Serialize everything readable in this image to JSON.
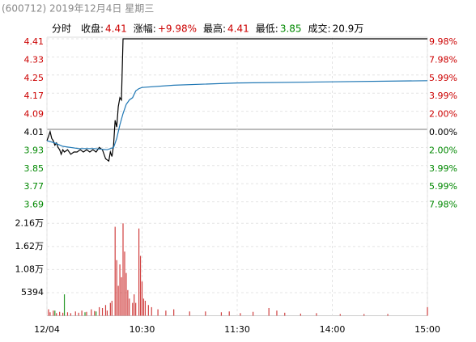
{
  "header": {
    "title": "(600712) 2019年12月4日 星期三",
    "tab": "分时",
    "info": [
      {
        "label": "收盘:",
        "value": "4.41"
      },
      {
        "label": "涨幅:",
        "value": "+9.98%"
      },
      {
        "label": "最高:",
        "value": "4.41"
      },
      {
        "label": "最低:",
        "value": "3.85"
      },
      {
        "label": "成交:",
        "value": "20.9万"
      }
    ]
  },
  "chart_data": [
    {
      "type": "line",
      "up_color": "#cc0000",
      "down_color": "#008800",
      "xlim": [
        0,
        240
      ],
      "xticks": [
        {
          "value": 0,
          "label": "12/04"
        },
        {
          "value": 60,
          "label": "10:30"
        },
        {
          "value": 120,
          "label": "11:30"
        },
        {
          "value": 180,
          "label": "14:00"
        },
        {
          "value": 240,
          "label": "15:00"
        }
      ],
      "ylim": [
        3.66,
        4.41
      ],
      "yticks": [
        4.41,
        4.33,
        4.25,
        4.17,
        4.09,
        4.01,
        3.93,
        3.85,
        3.77,
        3.69
      ],
      "y2lim": [
        -8.73,
        9.98
      ],
      "y2ticks": [
        {
          "value": 9.98,
          "label": "9.98%"
        },
        {
          "value": 7.98,
          "label": "7.98%"
        },
        {
          "value": 5.99,
          "label": "5.99%"
        },
        {
          "value": 3.99,
          "label": "3.99%"
        },
        {
          "value": 2.0,
          "label": "2.00%"
        },
        {
          "value": 0,
          "label": "0.00%"
        },
        {
          "value": -2.0,
          "label": "2.00%"
        },
        {
          "value": -3.99,
          "label": "3.99%"
        },
        {
          "value": -5.99,
          "label": "5.99%"
        },
        {
          "value": -7.98,
          "label": "7.98%"
        }
      ],
      "series": [
        {
          "color": "#000000",
          "x": [
            0,
            1,
            2,
            3,
            4,
            5,
            6,
            7,
            8,
            9,
            10,
            11,
            13,
            15,
            17,
            19,
            21,
            23,
            25,
            27,
            29,
            31,
            33,
            35,
            37,
            39,
            40,
            41,
            42,
            43,
            44,
            45,
            46,
            47,
            48,
            240
          ],
          "values": [
            3.96,
            3.98,
            4.0,
            3.97,
            3.96,
            3.94,
            3.95,
            3.93,
            3.92,
            3.9,
            3.92,
            3.91,
            3.92,
            3.9,
            3.91,
            3.91,
            3.92,
            3.91,
            3.92,
            3.91,
            3.92,
            3.91,
            3.93,
            3.92,
            3.88,
            3.87,
            3.91,
            3.89,
            3.94,
            4.05,
            4.02,
            4.11,
            4.15,
            4.14,
            4.41,
            4.41
          ]
        },
        {
          "color": "#1f77b4",
          "x": [
            0,
            5,
            10,
            20,
            30,
            38,
            42,
            44,
            46,
            48,
            50,
            52,
            54,
            56,
            58,
            60,
            80,
            120,
            180,
            240
          ],
          "values": [
            3.96,
            3.95,
            3.935,
            3.925,
            3.925,
            3.92,
            3.93,
            3.97,
            4.03,
            4.08,
            4.12,
            4.14,
            4.15,
            4.18,
            4.19,
            4.195,
            4.205,
            4.215,
            4.22,
            4.225
          ]
        }
      ]
    },
    {
      "type": "bar",
      "ylim": [
        0,
        24300
      ],
      "yticks": [
        {
          "value": 21600,
          "label": "2.16万"
        },
        {
          "value": 16200,
          "label": "1.62万"
        },
        {
          "value": 10800,
          "label": "1.08万"
        },
        5394
      ],
      "series": [
        {
          "color": "#d04040",
          "x": [
            1,
            2,
            4,
            6,
            8,
            10,
            13,
            15,
            18,
            20,
            22,
            25,
            28,
            30,
            33,
            35,
            37,
            38,
            40,
            41,
            43,
            44,
            45,
            46,
            47,
            48,
            49,
            50,
            51,
            52,
            54,
            55,
            56,
            58,
            59,
            60,
            61,
            62,
            64,
            66,
            70,
            75,
            80,
            90,
            100,
            110,
            115,
            122,
            130,
            140,
            145,
            150,
            160,
            170,
            185,
            200,
            215,
            240
          ],
          "values": [
            1500,
            800,
            1200,
            600,
            900,
            700,
            800,
            600,
            1000,
            700,
            1200,
            900,
            1500,
            1100,
            2000,
            1800,
            2500,
            1200,
            3000,
            3500,
            20800,
            13000,
            7000,
            12000,
            9000,
            21600,
            15000,
            10000,
            6000,
            4000,
            3000,
            5000,
            3000,
            20400,
            14000,
            8000,
            4000,
            3500,
            2500,
            2000,
            1500,
            1200,
            1500,
            1000,
            1000,
            800,
            1000,
            600,
            900,
            1800,
            1200,
            700,
            500,
            600,
            400,
            400,
            400,
            2000
          ]
        },
        {
          "color": "#2a9a2a",
          "x": [
            5,
            11,
            24,
            31
          ],
          "values": [
            1200,
            5000,
            800,
            1000
          ]
        }
      ]
    }
  ]
}
